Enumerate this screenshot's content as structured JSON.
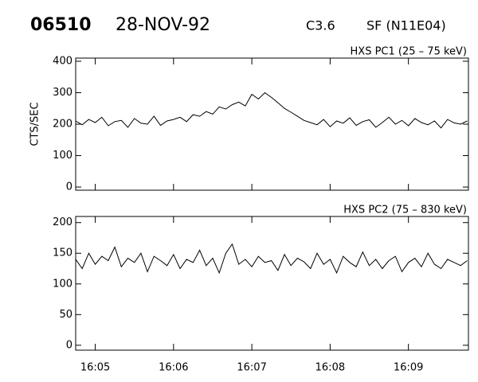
{
  "header": {
    "id": "06510",
    "date": "28-NOV-92",
    "class": "C3.6",
    "flare": "SF (N11E04)"
  },
  "chart_data": [
    {
      "type": "line",
      "title": "HXS PC1 (25 – 75 keV)",
      "ylabel": "CTS/SEC",
      "color": "#000000",
      "x": [
        "16:04:45",
        "16:04:50",
        "16:04:55",
        "16:05:00",
        "16:05:05",
        "16:05:10",
        "16:05:15",
        "16:05:20",
        "16:05:25",
        "16:05:30",
        "16:05:35",
        "16:05:40",
        "16:05:45",
        "16:05:50",
        "16:05:55",
        "16:06:00",
        "16:06:05",
        "16:06:10",
        "16:06:15",
        "16:06:20",
        "16:06:25",
        "16:06:30",
        "16:06:35",
        "16:06:40",
        "16:06:45",
        "16:06:50",
        "16:06:55",
        "16:07:00",
        "16:07:05",
        "16:07:10",
        "16:07:15",
        "16:07:20",
        "16:07:25",
        "16:07:30",
        "16:07:35",
        "16:07:40",
        "16:07:45",
        "16:07:50",
        "16:07:55",
        "16:08:00",
        "16:08:05",
        "16:08:10",
        "16:08:15",
        "16:08:20",
        "16:08:25",
        "16:08:30",
        "16:08:35",
        "16:08:40",
        "16:08:45",
        "16:08:50",
        "16:08:55",
        "16:09:00",
        "16:09:05",
        "16:09:10",
        "16:09:15",
        "16:09:20",
        "16:09:25",
        "16:09:30",
        "16:09:35",
        "16:09:40",
        "16:09:45"
      ],
      "values": [
        210,
        198,
        215,
        205,
        222,
        195,
        208,
        212,
        190,
        218,
        203,
        200,
        225,
        196,
        210,
        215,
        222,
        208,
        230,
        225,
        240,
        232,
        255,
        248,
        262,
        270,
        258,
        295,
        280,
        300,
        285,
        268,
        250,
        238,
        225,
        212,
        205,
        198,
        215,
        192,
        210,
        203,
        220,
        196,
        208,
        214,
        190,
        205,
        222,
        200,
        212,
        195,
        218,
        205,
        198,
        210,
        188,
        215,
        204,
        200,
        210
      ],
      "xlim": [
        "16:04:45",
        "16:09:46"
      ],
      "xticks": [
        "16:05:00",
        "16:06:00",
        "16:07:00",
        "16:08:00",
        "16:09:00"
      ],
      "ylim": [
        -10,
        410
      ],
      "yticks": [
        0,
        100,
        200,
        300,
        400
      ]
    },
    {
      "type": "line",
      "title": "HXS PC2 (75 – 830 keV)",
      "color": "#000000",
      "x": [
        "16:04:45",
        "16:04:50",
        "16:04:55",
        "16:05:00",
        "16:05:05",
        "16:05:10",
        "16:05:15",
        "16:05:20",
        "16:05:25",
        "16:05:30",
        "16:05:35",
        "16:05:40",
        "16:05:45",
        "16:05:50",
        "16:05:55",
        "16:06:00",
        "16:06:05",
        "16:06:10",
        "16:06:15",
        "16:06:20",
        "16:06:25",
        "16:06:30",
        "16:06:35",
        "16:06:40",
        "16:06:45",
        "16:06:50",
        "16:06:55",
        "16:07:00",
        "16:07:05",
        "16:07:10",
        "16:07:15",
        "16:07:20",
        "16:07:25",
        "16:07:30",
        "16:07:35",
        "16:07:40",
        "16:07:45",
        "16:07:50",
        "16:07:55",
        "16:08:00",
        "16:08:05",
        "16:08:10",
        "16:08:15",
        "16:08:20",
        "16:08:25",
        "16:08:30",
        "16:08:35",
        "16:08:40",
        "16:08:45",
        "16:08:50",
        "16:08:55",
        "16:09:00",
        "16:09:05",
        "16:09:10",
        "16:09:15",
        "16:09:20",
        "16:09:25",
        "16:09:30",
        "16:09:35",
        "16:09:40",
        "16:09:45"
      ],
      "values": [
        140,
        125,
        150,
        132,
        145,
        138,
        160,
        128,
        142,
        135,
        150,
        120,
        145,
        138,
        130,
        148,
        125,
        140,
        135,
        155,
        130,
        142,
        118,
        150,
        165,
        132,
        140,
        128,
        145,
        135,
        138,
        122,
        148,
        130,
        142,
        136,
        125,
        150,
        132,
        140,
        118,
        145,
        135,
        128,
        152,
        130,
        140,
        125,
        138,
        145,
        120,
        135,
        142,
        128,
        150,
        132,
        125,
        140,
        135,
        130,
        138
      ],
      "xlim": [
        "16:04:45",
        "16:09:46"
      ],
      "xticks": [
        {
          "value": "16:05:00",
          "label": "16:05"
        },
        {
          "value": "16:06:00",
          "label": "16:06"
        },
        {
          "value": "16:07:00",
          "label": "16:07"
        },
        {
          "value": "16:08:00",
          "label": "16:08"
        },
        {
          "value": "16:09:00",
          "label": "16:09"
        }
      ],
      "ylim": [
        -8,
        210
      ],
      "yticks": [
        0,
        50,
        100,
        150,
        200
      ]
    }
  ]
}
